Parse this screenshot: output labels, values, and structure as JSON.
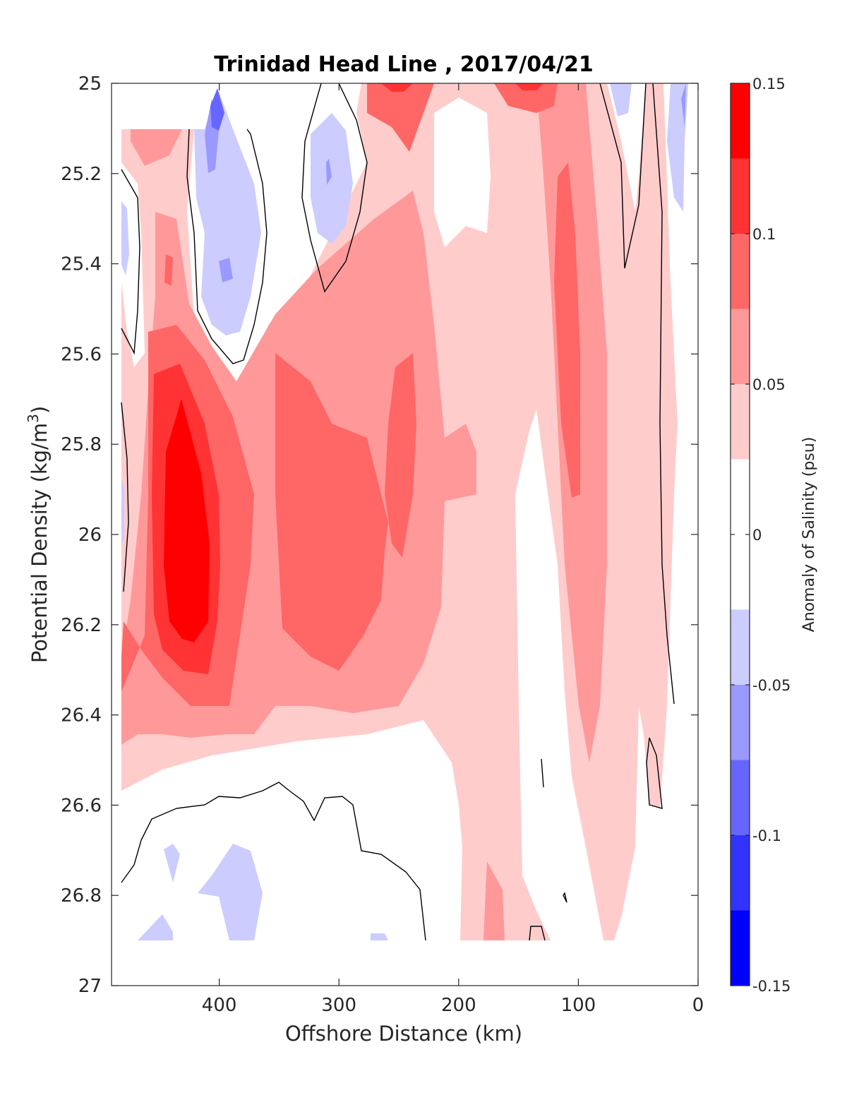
{
  "chart_data": {
    "type": "contour",
    "title": "Trinidad Head Line , 2017/04/21",
    "xlabel": "Offshore Distance (km)",
    "ylabel_main": "Potential Density (kg/m",
    "ylabel_sup": "3",
    "ylabel_close": ")",
    "xlim": [
      490,
      0
    ],
    "ylim": [
      25,
      27
    ],
    "x_reversed": true,
    "y_reversed": true,
    "xticks": [
      400,
      300,
      200,
      100,
      0
    ],
    "yticks": [
      25,
      25.2,
      25.4,
      25.6,
      25.8,
      26,
      26.2,
      26.4,
      26.6,
      26.8,
      27
    ],
    "grid": false,
    "colorbar": {
      "label": "Anomaly of Salinity (psu)",
      "range": [
        -0.15,
        0.15
      ],
      "ticks": [
        "0.15",
        "0.1",
        "0.05",
        "0",
        "-0.05",
        "-0.1",
        "-0.15"
      ],
      "levels": [
        -0.15,
        -0.125,
        -0.1,
        -0.075,
        -0.05,
        -0.025,
        0.025,
        0.05,
        0.075,
        0.1,
        0.125,
        0.15
      ],
      "colors_low_to_high": [
        "#0000ff",
        "#3333ff",
        "#6666ff",
        "#9999ff",
        "#ccccff",
        "#ffffff",
        "#ffcccc",
        "#ff9999",
        "#ff6666",
        "#ff3333",
        "#ff0000"
      ]
    },
    "data_extent": {
      "x": [
        480,
        10
      ],
      "y": [
        25.1,
        26.9
      ]
    },
    "features": [
      {
        "name": "surface-salty-core",
        "x_center": 250,
        "y_top": 25.0,
        "y_bottom": 25.02,
        "anomaly": 0.1
      },
      {
        "name": "deep-salty-core-west",
        "x_center": 425,
        "y_center": 26.0,
        "y_top": 25.7,
        "y_bottom": 26.24,
        "anomaly": 0.13
      },
      {
        "name": "salty-core-central",
        "x_center": 300,
        "y_center": 25.95,
        "anomaly": 0.09
      },
      {
        "name": "salty-column-east",
        "x_center": 110,
        "y_center": 25.6,
        "anomaly": 0.09
      },
      {
        "name": "fresh-lens-north",
        "x_center": 390,
        "y_center": 25.2,
        "anomaly": -0.08
      },
      {
        "name": "fresh-lens-central",
        "x_center": 310,
        "y_center": 25.2,
        "anomaly": -0.05
      },
      {
        "name": "fresh-patch-deep",
        "x_center": 350,
        "y_center": 26.8,
        "anomaly": -0.04
      }
    ]
  }
}
